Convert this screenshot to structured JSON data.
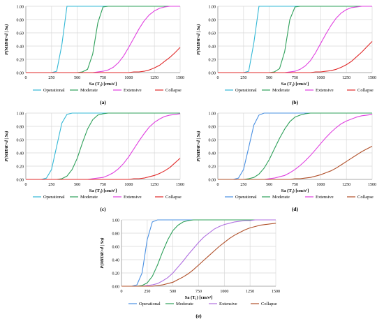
{
  "chart_data": [
    {
      "type": "line",
      "panel_label": "(a)",
      "xlabel": "Sa (T₁) [cm/s²]",
      "ylabel": "P(MIDR>d | Sa)",
      "xlim": [
        0,
        1500
      ],
      "ylim": [
        0,
        1
      ],
      "x_ticks": [
        "0",
        "250",
        "500",
        "750",
        "1000",
        "1250",
        "1500"
      ],
      "y_ticks": [
        "0.00",
        "0.20",
        "0.40",
        "0.60",
        "0.80",
        "1.00"
      ],
      "grid": true,
      "legend": "bottom",
      "x": [
        0,
        50,
        100,
        150,
        200,
        250,
        300,
        350,
        400,
        450,
        500,
        550,
        600,
        650,
        700,
        750,
        800,
        850,
        900,
        950,
        1000,
        1050,
        1100,
        1150,
        1200,
        1250,
        1300,
        1350,
        1400,
        1450,
        1500
      ],
      "series": [
        {
          "name": "Operational",
          "color": "#33b8d6",
          "values": [
            0,
            0,
            0,
            0,
            0,
            0,
            0.02,
            0.42,
            1,
            1,
            1,
            1,
            1,
            1,
            1,
            1,
            1,
            1,
            1,
            1,
            1,
            1,
            1,
            1,
            1,
            1,
            1,
            1,
            1,
            1,
            1
          ]
        },
        {
          "name": "Moderate",
          "color": "#2ea05a",
          "values": [
            0,
            0,
            0,
            0,
            0,
            0,
            0,
            0,
            0,
            0,
            0,
            0.01,
            0.05,
            0.28,
            0.75,
            0.99,
            1,
            1,
            1,
            1,
            1,
            1,
            1,
            1,
            1,
            1,
            1,
            1,
            1,
            1,
            1
          ]
        },
        {
          "name": "Extensive",
          "color": "#e040e0",
          "values": [
            0,
            0,
            0,
            0,
            0,
            0,
            0,
            0,
            0,
            0,
            0,
            0,
            0,
            0,
            0.01,
            0.02,
            0.04,
            0.08,
            0.15,
            0.25,
            0.38,
            0.52,
            0.66,
            0.78,
            0.87,
            0.93,
            0.97,
            0.99,
            1,
            1,
            1
          ]
        },
        {
          "name": "Collapse",
          "color": "#e02a2a",
          "values": [
            0,
            0,
            0,
            0,
            0,
            0,
            0,
            0,
            0,
            0,
            0,
            0,
            0,
            0,
            0,
            0,
            0,
            0,
            0,
            0,
            0,
            0.01,
            0.01,
            0.02,
            0.04,
            0.07,
            0.11,
            0.17,
            0.23,
            0.3,
            0.38
          ]
        }
      ]
    },
    {
      "type": "line",
      "panel_label": "(b)",
      "xlabel": "Sa (T₁) [cm/s²]",
      "ylabel": "P(MIDR>d | Sa)",
      "xlim": [
        0,
        1500
      ],
      "ylim": [
        0,
        1
      ],
      "x_ticks": [
        "0",
        "250",
        "500",
        "750",
        "1000",
        "1250",
        "1500"
      ],
      "y_ticks": [
        "0.00",
        "0.20",
        "0.40",
        "0.60",
        "0.80",
        "1.00"
      ],
      "grid": true,
      "legend": "bottom",
      "x": [
        0,
        50,
        100,
        150,
        200,
        250,
        300,
        350,
        400,
        450,
        500,
        550,
        600,
        650,
        700,
        750,
        800,
        850,
        900,
        950,
        1000,
        1050,
        1100,
        1150,
        1200,
        1250,
        1300,
        1350,
        1400,
        1450,
        1500
      ],
      "series": [
        {
          "name": "Operational",
          "color": "#33b8d6",
          "values": [
            0,
            0,
            0,
            0,
            0,
            0,
            0.02,
            0.45,
            1,
            1,
            1,
            1,
            1,
            1,
            1,
            1,
            1,
            1,
            1,
            1,
            1,
            1,
            1,
            1,
            1,
            1,
            1,
            1,
            1,
            1,
            1
          ]
        },
        {
          "name": "Moderate",
          "color": "#2ea05a",
          "values": [
            0,
            0,
            0,
            0,
            0,
            0,
            0,
            0,
            0,
            0,
            0,
            0.01,
            0.06,
            0.32,
            0.8,
            0.99,
            1,
            1,
            1,
            1,
            1,
            1,
            1,
            1,
            1,
            1,
            1,
            1,
            1,
            1,
            1
          ]
        },
        {
          "name": "Extensive",
          "color": "#e040e0",
          "values": [
            0,
            0,
            0,
            0,
            0,
            0,
            0,
            0,
            0,
            0,
            0,
            0,
            0,
            0,
            0.01,
            0.02,
            0.05,
            0.1,
            0.18,
            0.3,
            0.44,
            0.58,
            0.71,
            0.82,
            0.9,
            0.95,
            0.98,
            0.99,
            1,
            1,
            1
          ]
        },
        {
          "name": "Collapse",
          "color": "#e02a2a",
          "values": [
            0,
            0,
            0,
            0,
            0,
            0,
            0,
            0,
            0,
            0,
            0,
            0,
            0,
            0,
            0,
            0,
            0,
            0,
            0,
            0.01,
            0.01,
            0.02,
            0.03,
            0.05,
            0.08,
            0.12,
            0.17,
            0.24,
            0.31,
            0.39,
            0.47
          ]
        }
      ]
    },
    {
      "type": "line",
      "panel_label": "(c)",
      "xlabel": "Sa (T₁) [cm/s²]",
      "ylabel": "P(MIDR>d | Sa)",
      "xlim": [
        0,
        1500
      ],
      "ylim": [
        0,
        1
      ],
      "x_ticks": [
        "0",
        "250",
        "500",
        "750",
        "1000",
        "1250",
        "1500"
      ],
      "y_ticks": [
        "0.00",
        "0.20",
        "0.40",
        "0.60",
        "0.80",
        "1.00"
      ],
      "grid": true,
      "legend": "bottom",
      "x": [
        0,
        50,
        100,
        150,
        200,
        250,
        300,
        350,
        400,
        450,
        500,
        550,
        600,
        650,
        700,
        750,
        800,
        850,
        900,
        950,
        1000,
        1050,
        1100,
        1150,
        1200,
        1250,
        1300,
        1350,
        1400,
        1450,
        1500
      ],
      "series": [
        {
          "name": "Operational",
          "color": "#33b8d6",
          "values": [
            0,
            0,
            0,
            0,
            0.02,
            0.15,
            0.5,
            0.85,
            0.98,
            1,
            1,
            1,
            1,
            1,
            1,
            1,
            1,
            1,
            1,
            1,
            1,
            1,
            1,
            1,
            1,
            1,
            1,
            1,
            1,
            1,
            1
          ]
        },
        {
          "name": "Moderate",
          "color": "#2ea05a",
          "values": [
            0,
            0,
            0,
            0,
            0,
            0,
            0,
            0.01,
            0.05,
            0.15,
            0.32,
            0.55,
            0.76,
            0.9,
            0.97,
            0.99,
            1,
            1,
            1,
            1,
            1,
            1,
            1,
            1,
            1,
            1,
            1,
            1,
            1,
            1,
            1
          ]
        },
        {
          "name": "Extensive",
          "color": "#e040e0",
          "values": [
            0,
            0,
            0,
            0,
            0,
            0,
            0,
            0,
            0,
            0,
            0,
            0,
            0,
            0.01,
            0.02,
            0.03,
            0.06,
            0.1,
            0.16,
            0.24,
            0.34,
            0.46,
            0.58,
            0.69,
            0.79,
            0.86,
            0.91,
            0.95,
            0.97,
            0.98,
            0.99
          ]
        },
        {
          "name": "Collapse",
          "color": "#e02a2a",
          "values": [
            0,
            0,
            0,
            0,
            0,
            0,
            0,
            0,
            0,
            0,
            0,
            0,
            0,
            0,
            0,
            0,
            0,
            0,
            0,
            0,
            0,
            0.01,
            0.01,
            0.02,
            0.04,
            0.06,
            0.09,
            0.13,
            0.18,
            0.25,
            0.32
          ]
        }
      ]
    },
    {
      "type": "line",
      "panel_label": "(d)",
      "xlabel": "Sa (T₁) [cm/s²]",
      "ylabel": "P(MIDR>d | Sa)",
      "xlim": [
        0,
        1500
      ],
      "ylim": [
        0,
        1
      ],
      "x_ticks": [
        "0",
        "250",
        "500",
        "750",
        "1000",
        "1250",
        "1500"
      ],
      "y_ticks": [
        "0.00",
        "0.20",
        "0.40",
        "0.60",
        "0.80",
        "1.00"
      ],
      "grid": true,
      "legend": "bottom",
      "x": [
        0,
        50,
        100,
        150,
        200,
        250,
        300,
        350,
        400,
        450,
        500,
        550,
        600,
        650,
        700,
        750,
        800,
        850,
        900,
        950,
        1000,
        1050,
        1100,
        1150,
        1200,
        1250,
        1300,
        1350,
        1400,
        1450,
        1500
      ],
      "series": [
        {
          "name": "Operational",
          "color": "#4a90e2",
          "values": [
            0,
            0,
            0,
            0,
            0.02,
            0.15,
            0.48,
            0.82,
            0.97,
            1,
            1,
            1,
            1,
            1,
            1,
            1,
            1,
            1,
            1,
            1,
            1,
            1,
            1,
            1,
            1,
            1,
            1,
            1,
            1,
            1,
            1
          ]
        },
        {
          "name": "Moderate",
          "color": "#2ea05a",
          "values": [
            0,
            0,
            0,
            0,
            0,
            0,
            0.01,
            0.03,
            0.08,
            0.17,
            0.3,
            0.46,
            0.62,
            0.76,
            0.87,
            0.94,
            0.97,
            0.99,
            1,
            1,
            1,
            1,
            1,
            1,
            1,
            1,
            1,
            1,
            1,
            1,
            1
          ]
        },
        {
          "name": "Extensive",
          "color": "#e040e0",
          "values": [
            0,
            0,
            0,
            0,
            0,
            0,
            0,
            0,
            0,
            0,
            0.01,
            0.02,
            0.04,
            0.06,
            0.1,
            0.15,
            0.21,
            0.28,
            0.36,
            0.45,
            0.54,
            0.63,
            0.71,
            0.78,
            0.84,
            0.88,
            0.91,
            0.94,
            0.96,
            0.97,
            0.98
          ]
        },
        {
          "name": "Collapse",
          "color": "#b0502a",
          "values": [
            0,
            0,
            0,
            0,
            0,
            0,
            0,
            0,
            0,
            0,
            0,
            0,
            0,
            0,
            0,
            0.01,
            0.01,
            0.02,
            0.03,
            0.05,
            0.07,
            0.1,
            0.13,
            0.17,
            0.22,
            0.27,
            0.32,
            0.37,
            0.42,
            0.46,
            0.5
          ]
        }
      ]
    },
    {
      "type": "line",
      "panel_label": "(e)",
      "xlabel": "Sa (T₁) [cm/s²]",
      "ylabel": "P(MIDR>d | Sa)",
      "xlim": [
        0,
        1500
      ],
      "ylim": [
        0,
        1
      ],
      "x_ticks": [
        "0",
        "250",
        "500",
        "750",
        "1000",
        "1250",
        "1500"
      ],
      "y_ticks": [
        "0.00",
        "0.20",
        "0.40",
        "0.60",
        "0.80",
        "1.00"
      ],
      "grid": true,
      "legend": "bottom",
      "x": [
        0,
        50,
        100,
        150,
        200,
        250,
        300,
        350,
        400,
        450,
        500,
        550,
        600,
        650,
        700,
        750,
        800,
        850,
        900,
        950,
        1000,
        1050,
        1100,
        1150,
        1200,
        1250,
        1300,
        1350,
        1400,
        1450,
        1500
      ],
      "series": [
        {
          "name": "Operational",
          "color": "#4a90e2",
          "values": [
            0,
            0,
            0,
            0.02,
            0.2,
            0.7,
            0.97,
            1,
            1,
            1,
            1,
            1,
            1,
            1,
            1,
            1,
            1,
            1,
            1,
            1,
            1,
            1,
            1,
            1,
            1,
            1,
            1,
            1,
            1,
            1,
            1
          ]
        },
        {
          "name": "Moderate",
          "color": "#2ea05a",
          "values": [
            0,
            0,
            0,
            0,
            0.01,
            0.05,
            0.15,
            0.32,
            0.52,
            0.7,
            0.84,
            0.92,
            0.97,
            0.99,
            1,
            1,
            1,
            1,
            1,
            1,
            1,
            1,
            1,
            1,
            1,
            1,
            1,
            1,
            1,
            1,
            1
          ]
        },
        {
          "name": "Extensive",
          "color": "#b070e0",
          "values": [
            0,
            0,
            0,
            0,
            0,
            0.01,
            0.02,
            0.04,
            0.08,
            0.13,
            0.2,
            0.29,
            0.38,
            0.48,
            0.57,
            0.66,
            0.74,
            0.8,
            0.86,
            0.9,
            0.93,
            0.95,
            0.97,
            0.98,
            0.99,
            0.99,
            1,
            1,
            1,
            1,
            1
          ]
        },
        {
          "name": "Collapse",
          "color": "#b0502a",
          "values": [
            0,
            0,
            0,
            0,
            0,
            0,
            0,
            0.01,
            0.02,
            0.04,
            0.06,
            0.1,
            0.14,
            0.19,
            0.25,
            0.32,
            0.39,
            0.46,
            0.53,
            0.6,
            0.66,
            0.72,
            0.77,
            0.81,
            0.85,
            0.88,
            0.9,
            0.92,
            0.93,
            0.94,
            0.95
          ]
        }
      ]
    }
  ]
}
